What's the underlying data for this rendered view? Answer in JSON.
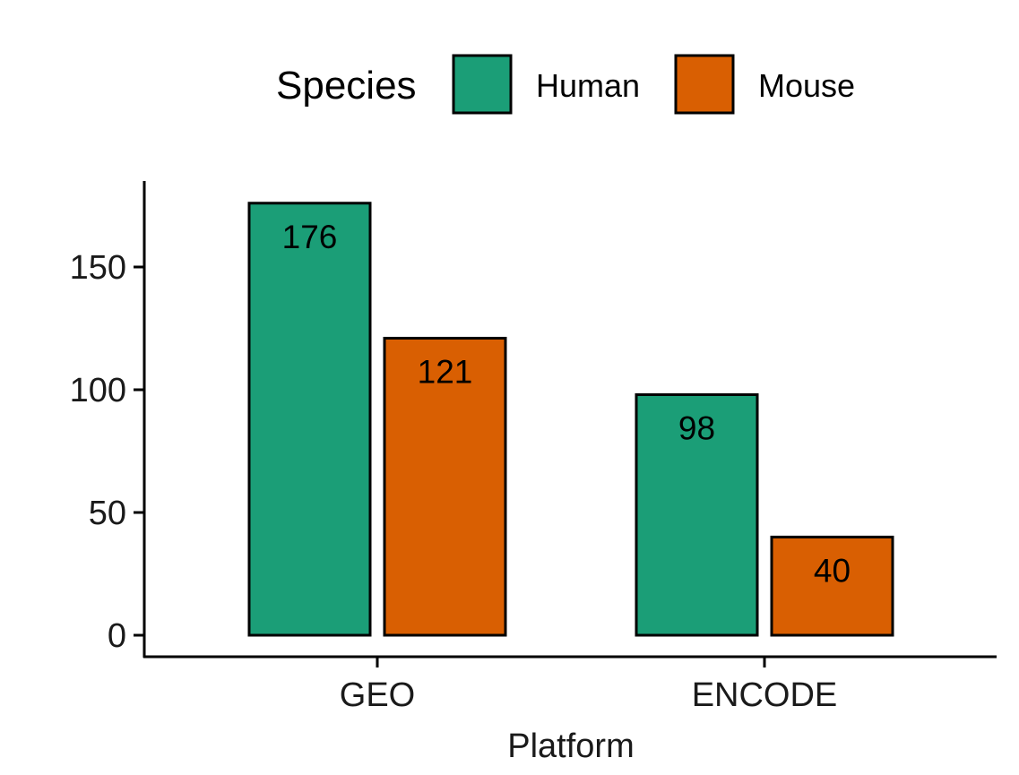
{
  "chart_data": {
    "type": "bar",
    "categories": [
      "GEO",
      "ENCODE"
    ],
    "series": [
      {
        "name": "Human",
        "values": [
          176,
          98
        ],
        "color": "#1B9E77"
      },
      {
        "name": "Mouse",
        "values": [
          121,
          40
        ],
        "color": "#D95F02"
      }
    ],
    "title": "",
    "xlabel": "Platform",
    "ylabel": "",
    "ylim": [
      0,
      180
    ],
    "yticks": [
      0,
      50,
      100,
      150
    ],
    "legend": {
      "title": "Species",
      "position": "top"
    },
    "grid": false,
    "data_labels": true
  }
}
